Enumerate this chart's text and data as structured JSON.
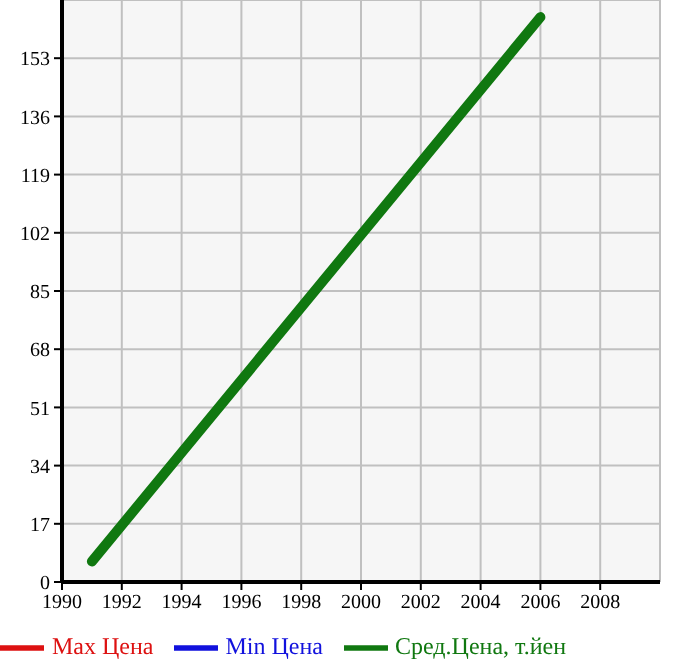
{
  "chart_data": {
    "type": "line",
    "x": [
      1991,
      2006
    ],
    "xlim": [
      1990,
      2010
    ],
    "xticks": [
      1990,
      1992,
      1994,
      1996,
      1998,
      2000,
      2002,
      2004,
      2006,
      2008
    ],
    "ylim": [
      0,
      170
    ],
    "yticks": [
      0,
      17,
      34,
      51,
      68,
      85,
      102,
      119,
      136,
      153
    ],
    "grid": true,
    "legend": "bottom",
    "marker": "none",
    "line_style": "solid",
    "series": [
      {
        "name": "Max Цена",
        "color": "#dd1111",
        "values": [
          null,
          null
        ]
      },
      {
        "name": "Min Цена",
        "color": "#1111dd",
        "values": [
          null,
          null
        ]
      },
      {
        "name": "Сред.Цена, т.йен",
        "color": "#107810",
        "values": [
          6,
          165
        ]
      }
    ]
  }
}
